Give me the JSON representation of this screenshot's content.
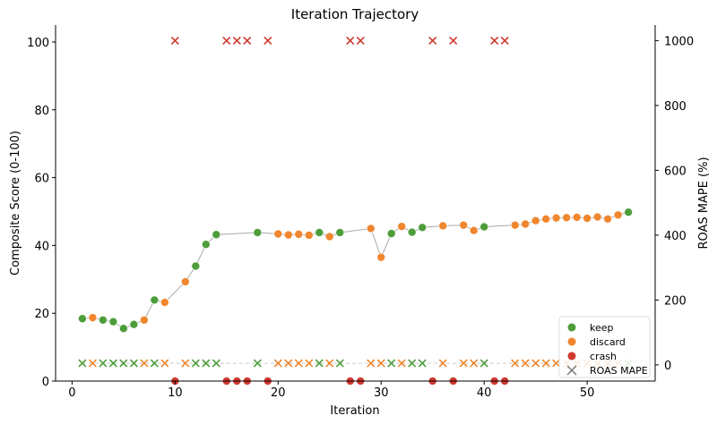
{
  "chart_data": {
    "type": "scatter",
    "title": "Iteration Trajectory",
    "xlabel": "Iteration",
    "ylabel": "Composite Score (0-100)",
    "y2label": "ROAS MAPE (%)",
    "xlim": [
      -1.6,
      56.6
    ],
    "ylim": [
      0,
      105
    ],
    "y2lim": [
      -50,
      1048
    ],
    "xticks": [
      "0",
      "10",
      "20",
      "30",
      "40",
      "50"
    ],
    "yticks": [
      "0",
      "20",
      "40",
      "60",
      "80",
      "100"
    ],
    "y2ticks": [
      "0",
      "200",
      "400",
      "600",
      "800",
      "1000"
    ],
    "grid": false,
    "legend_position": "bottom-right",
    "legend": [
      "keep",
      "discard",
      "crash",
      "ROAS MAPE"
    ],
    "colors": {
      "keep": "#4d9e3a",
      "discard": "#f0862e",
      "crash": "#d0382f",
      "line": "#aaaaaa",
      "mape_marker": "#777777"
    },
    "iterations": [
      1,
      2,
      3,
      4,
      5,
      6,
      7,
      8,
      9,
      10,
      11,
      12,
      13,
      14,
      15,
      16,
      17,
      18,
      19,
      20,
      21,
      22,
      23,
      24,
      25,
      26,
      27,
      28,
      29,
      30,
      31,
      32,
      33,
      34,
      35,
      36,
      37,
      38,
      39,
      40,
      41,
      42,
      43,
      44,
      45,
      46,
      47,
      48,
      49,
      50,
      51,
      52,
      53,
      54
    ],
    "status": [
      "keep",
      "discard",
      "keep",
      "keep",
      "keep",
      "keep",
      "discard",
      "keep",
      "discard",
      "crash",
      "discard",
      "keep",
      "keep",
      "keep",
      "crash",
      "crash",
      "crash",
      "keep",
      "crash",
      "discard",
      "discard",
      "discard",
      "discard",
      "keep",
      "discard",
      "keep",
      "crash",
      "crash",
      "discard",
      "discard",
      "keep",
      "discard",
      "keep",
      "keep",
      "crash",
      "discard",
      "crash",
      "discard",
      "discard",
      "keep",
      "crash",
      "crash",
      "discard",
      "discard",
      "discard",
      "discard",
      "discard",
      "discard",
      "discard",
      "discard",
      "discard",
      "discard",
      "discard",
      "keep"
    ],
    "score": [
      18.4,
      18.7,
      18.0,
      17.5,
      15.5,
      16.7,
      18.0,
      23.9,
      23.2,
      0,
      29.3,
      33.9,
      40.3,
      43.2,
      0,
      0,
      0,
      43.8,
      0,
      43.4,
      43.1,
      43.3,
      43.0,
      43.8,
      42.6,
      43.8,
      0,
      0,
      45.0,
      36.5,
      43.5,
      45.6,
      43.9,
      45.3,
      0,
      45.8,
      0,
      46.0,
      44.4,
      45.5,
      0,
      0,
      46.0,
      46.3,
      47.3,
      47.8,
      48.1,
      48.2,
      48.3,
      48.0,
      48.4,
      47.8,
      49.0,
      49.8
    ],
    "roas_mape": [
      5,
      5,
      5,
      5,
      5,
      5,
      5,
      5,
      5,
      1000,
      5,
      5,
      5,
      5,
      1000,
      1000,
      1000,
      5,
      1000,
      5,
      5,
      5,
      5,
      5,
      5,
      5,
      1000,
      1000,
      5,
      5,
      5,
      5,
      5,
      5,
      1000,
      5,
      1000,
      5,
      5,
      5,
      1000,
      1000,
      5,
      5,
      5,
      5,
      5,
      5,
      5,
      5,
      5,
      5,
      5,
      5
    ]
  }
}
